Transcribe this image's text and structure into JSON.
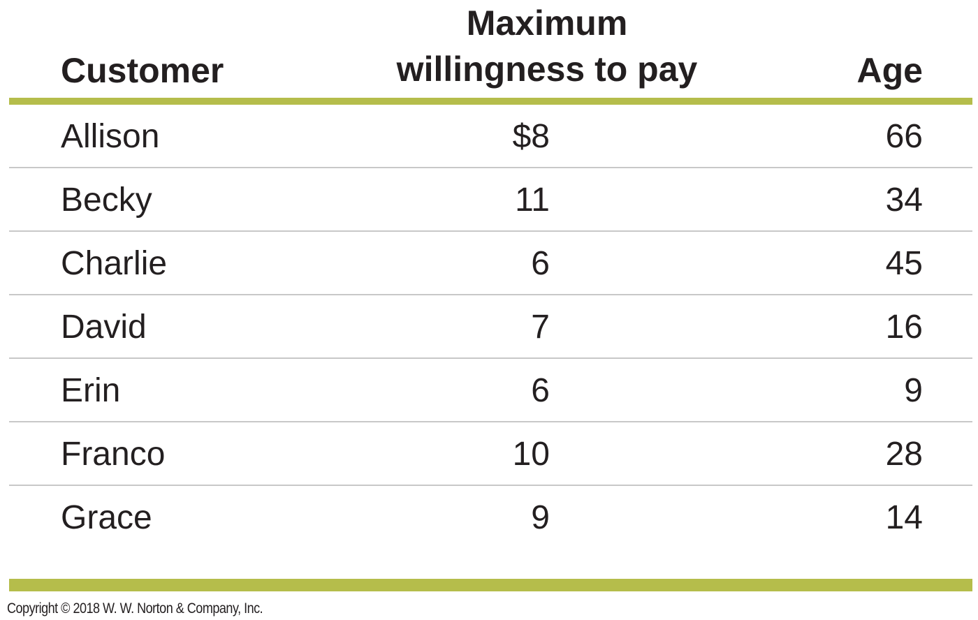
{
  "table": {
    "columns": {
      "customer": "Customer",
      "wtp_line1": "Maximum",
      "wtp_line2": "willingness to pay",
      "age": "Age"
    },
    "rows": [
      {
        "customer": "Allison",
        "wtp": "$8",
        "age": "66"
      },
      {
        "customer": "Becky",
        "wtp": "11",
        "age": "34"
      },
      {
        "customer": "Charlie",
        "wtp": "6",
        "age": "45"
      },
      {
        "customer": "David",
        "wtp": "7",
        "age": "16"
      },
      {
        "customer": "Erin",
        "wtp": "6",
        "age": "9"
      },
      {
        "customer": "Franco",
        "wtp": "10",
        "age": "28"
      },
      {
        "customer": "Grace",
        "wtp": "9",
        "age": "14"
      }
    ],
    "accent_color": "#b5bd4b",
    "divider_color": "#c8c8c8"
  },
  "footer": {
    "copyright": "Copyright © 2018 W. W. Norton & Company, Inc."
  }
}
